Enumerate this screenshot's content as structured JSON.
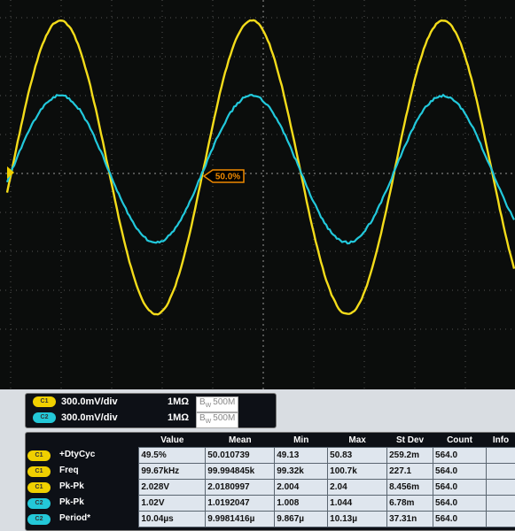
{
  "marker": "50.0%",
  "channels": [
    {
      "badge": "C1",
      "scale": "300.0mV/div",
      "impedance": "1MΩ",
      "bw_symbol": "B",
      "bw_sub": "W",
      "bw": "500M"
    },
    {
      "badge": "C2",
      "scale": "300.0mV/div",
      "impedance": "1MΩ",
      "bw_symbol": "B",
      "bw_sub": "W",
      "bw": "500M"
    }
  ],
  "measurements": {
    "headers": [
      "Value",
      "Mean",
      "Min",
      "Max",
      "St Dev",
      "Count",
      "Info"
    ],
    "rows": [
      {
        "badge": "C1",
        "name": "+DtyCyc",
        "cells": [
          "49.5%",
          "50.010739",
          "49.13",
          "50.83",
          "259.2m",
          "564.0"
        ]
      },
      {
        "badge": "C1",
        "name": "Freq",
        "cells": [
          "99.67kHz",
          "99.994845k",
          "99.32k",
          "100.7k",
          "227.1",
          "564.0"
        ]
      },
      {
        "badge": "C1",
        "name": "Pk-Pk",
        "cells": [
          "2.028V",
          "2.0180997",
          "2.004",
          "2.04",
          "8.456m",
          "564.0"
        ]
      },
      {
        "badge": "C2",
        "name": "Pk-Pk",
        "cells": [
          "1.02V",
          "1.0192047",
          "1.008",
          "1.044",
          "6.78m",
          "564.0"
        ]
      },
      {
        "badge": "C2",
        "name": "Period*",
        "cells": [
          "10.04µs",
          "9.9981416µ",
          "9.867µ",
          "10.13µ",
          "37.31n",
          "564.0"
        ]
      }
    ]
  }
}
